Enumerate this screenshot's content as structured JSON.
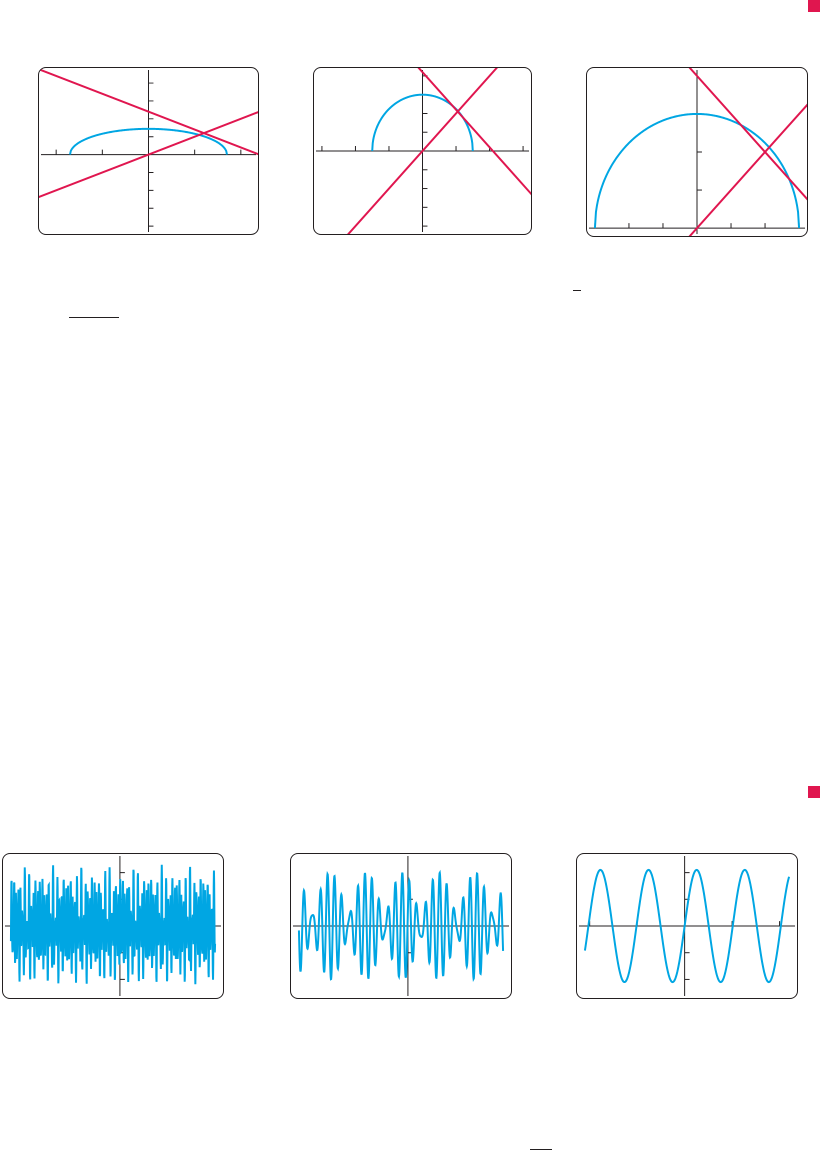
{
  "colors": {
    "curve": "#00a6e3",
    "line": "#e0164f",
    "axis": "#231f20",
    "frame": "#231f20",
    "marker": "#e0164f"
  },
  "graphs": [
    {
      "id": "screen-1",
      "window": {
        "xmin": -2.2,
        "xmax": 2.2,
        "ymin": -2.0,
        "ymax": 2.2
      },
      "xticks": [
        -2,
        -1,
        1,
        2
      ],
      "yticks": [
        -2,
        -1.5,
        -1,
        -0.5,
        0.5,
        1,
        1.5,
        2
      ],
      "curves": [
        {
          "kind": "ellipse_upper",
          "a": 1.7,
          "b": 0.72,
          "color": "curve"
        },
        {
          "kind": "line",
          "slope": 0.5,
          "intercept": 0,
          "color": "line"
        },
        {
          "kind": "line",
          "slope": -0.5,
          "intercept": 1.2,
          "color": "line"
        }
      ]
    },
    {
      "id": "screen-2",
      "window": {
        "xmin": -3,
        "xmax": 3,
        "ymin": -2,
        "ymax": 2
      },
      "xticks": [
        -3,
        -2,
        -1,
        1,
        2,
        3
      ],
      "yticks": [
        -2,
        -1.5,
        -1,
        -0.5,
        0.5,
        1,
        1.5,
        2
      ],
      "curves": [
        {
          "kind": "ellipse_upper",
          "a": 1.5,
          "b": 1.5,
          "color": "curve"
        },
        {
          "kind": "line",
          "slope": 1,
          "intercept": 0,
          "color": "line"
        },
        {
          "kind": "line",
          "slope": -1,
          "intercept": 2.1,
          "color": "line"
        }
      ]
    },
    {
      "id": "screen-3",
      "window": {
        "xmin": -3,
        "xmax": 3,
        "ymin": 0,
        "ymax": 4
      },
      "xticks": [
        -3,
        -2,
        -1,
        1,
        2,
        3
      ],
      "yticks": [
        1,
        2,
        3
      ],
      "xaxis_at": 0,
      "curves": [
        {
          "kind": "ellipse_upper",
          "a": 3,
          "b": 3,
          "color": "curve"
        },
        {
          "kind": "line",
          "slope": 1,
          "intercept": 0,
          "color": "line"
        },
        {
          "kind": "line",
          "slope": -1,
          "intercept": 4.0,
          "color": "line"
        }
      ]
    },
    {
      "id": "screen-4",
      "window": {
        "xmin": -6.3,
        "xmax": 5.5,
        "ymin": -1.2,
        "ymax": 1.2
      },
      "xticks": [
        -6,
        -4,
        -2,
        2,
        4
      ],
      "yticks": [
        -1,
        -0.5,
        0.5,
        1
      ],
      "curves": [
        {
          "kind": "sine_sum",
          "freqs": [
            50,
            73,
            31
          ],
          "amps": [
            0.55,
            0.35,
            0.25
          ],
          "color": "curve"
        }
      ]
    },
    {
      "id": "screen-5",
      "window": {
        "xmin": -6.3,
        "xmax": 5.5,
        "ymin": -1.2,
        "ymax": 1.2
      },
      "xticks": [],
      "yticks": [
        -0.5,
        0.5
      ],
      "curves": [
        {
          "kind": "sine_sum",
          "freqs": [
            14.5,
            17.5
          ],
          "amps": [
            0.6,
            0.4
          ],
          "color": "curve"
        }
      ]
    },
    {
      "id": "screen-6",
      "window": {
        "xmin": -2.1,
        "xmax": 2.2,
        "ymin": -1.2,
        "ymax": 1.2
      },
      "xticks": [
        -2,
        -1,
        1,
        2
      ],
      "yticks": [
        -1,
        -0.5,
        0.5,
        1
      ],
      "curves": [
        {
          "kind": "sine",
          "freq": 6.2,
          "phase": 0,
          "amp": 1.05,
          "color": "curve"
        }
      ]
    }
  ]
}
